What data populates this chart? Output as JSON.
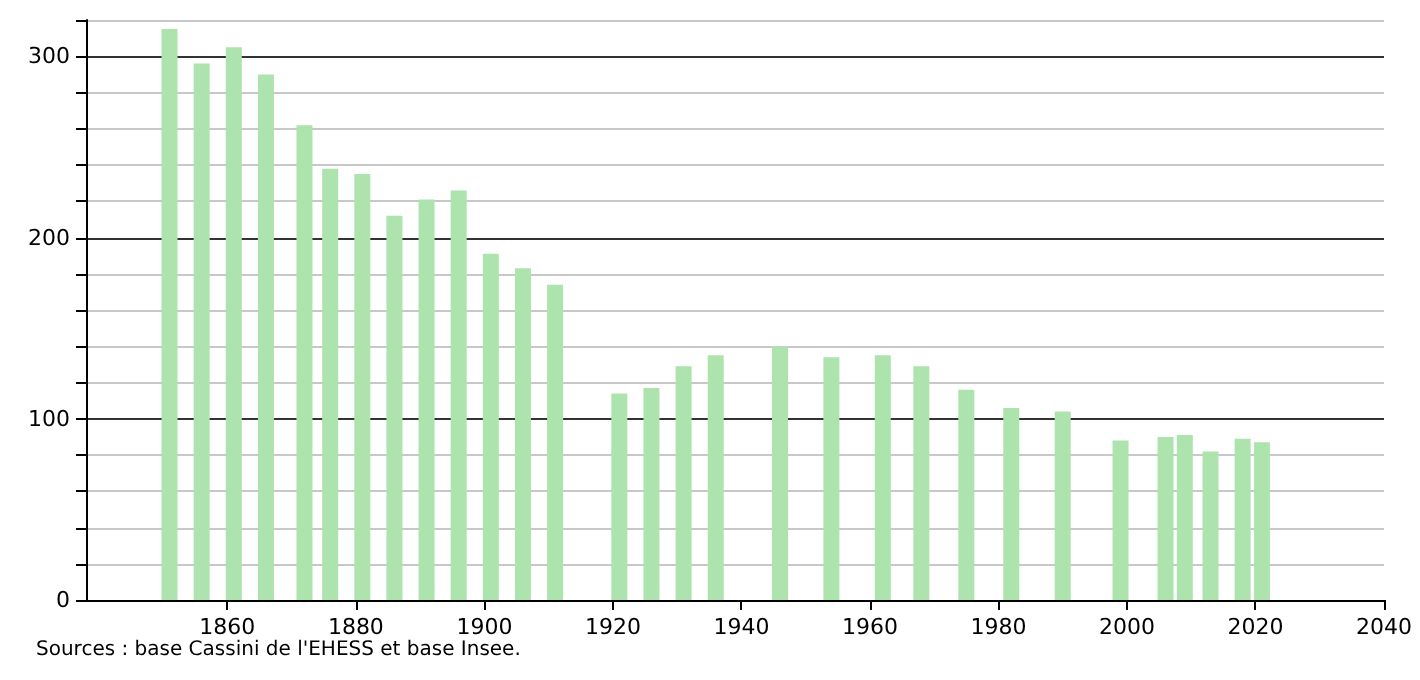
{
  "chart_data": {
    "type": "bar",
    "color": "#ade3ad",
    "x": [
      1851,
      1856,
      1861,
      1866,
      1872,
      1876,
      1881,
      1886,
      1891,
      1896,
      1901,
      1906,
      1911,
      1921,
      1926,
      1931,
      1936,
      1946,
      1954,
      1962,
      1968,
      1975,
      1982,
      1990,
      1999,
      2006,
      2009,
      2013,
      2018,
      2021
    ],
    "values": [
      315,
      296,
      305,
      290,
      262,
      238,
      235,
      212,
      221,
      226,
      191,
      183,
      174,
      114,
      117,
      129,
      135,
      140,
      134,
      135,
      129,
      116,
      106,
      104,
      88,
      90,
      91,
      82,
      89,
      87
    ],
    "xlim": [
      1838,
      2040
    ],
    "xticks": [
      1860,
      1880,
      1900,
      1920,
      1940,
      1960,
      1980,
      2000,
      2020,
      2040
    ],
    "ylim": [
      0,
      320
    ],
    "yticks": [
      0,
      {
        "value": 20,
        "label": null
      },
      {
        "value": 40,
        "label": null
      },
      {
        "value": 60,
        "label": null
      },
      {
        "value": 80,
        "label": null
      },
      100,
      {
        "value": 120,
        "label": null
      },
      {
        "value": 140,
        "label": null
      },
      {
        "value": 160,
        "label": null
      },
      {
        "value": 180,
        "label": null
      },
      200,
      {
        "value": 220,
        "label": null
      },
      {
        "value": 240,
        "label": null
      },
      {
        "value": 260,
        "label": null
      },
      {
        "value": 280,
        "label": null
      },
      300,
      {
        "value": 320,
        "label": null
      }
    ],
    "grid": "y",
    "annotations": [
      "Sources : base Cassini de l'EHESS et base Insee."
    ]
  }
}
